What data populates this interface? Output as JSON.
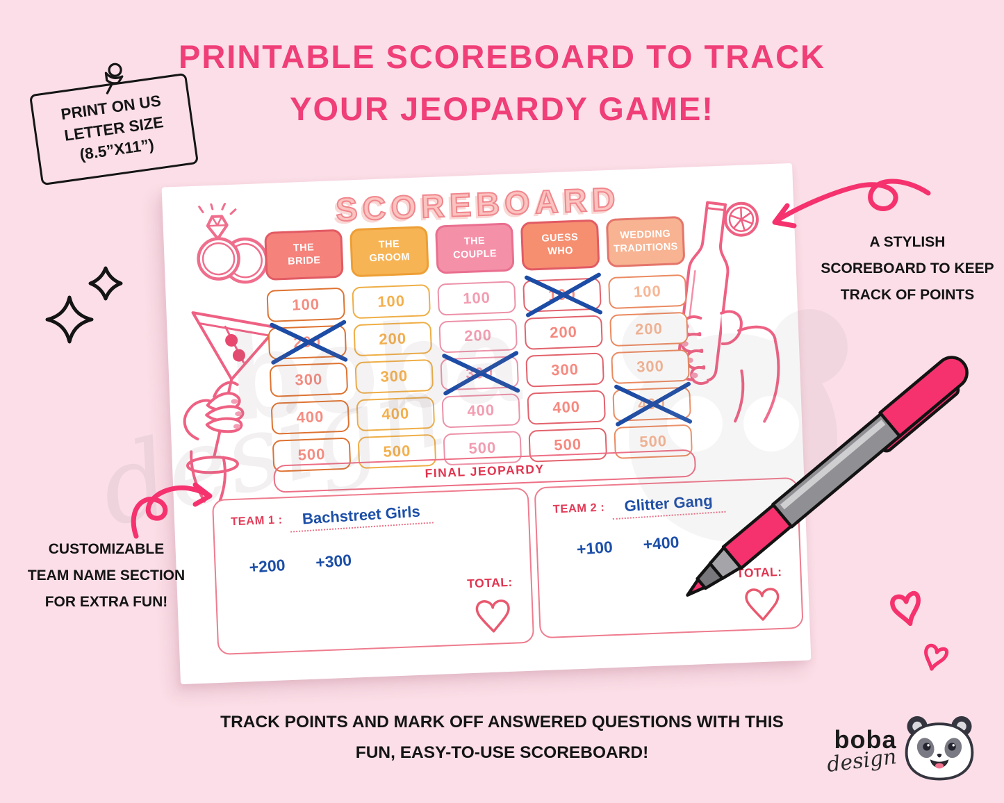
{
  "page": {
    "title_line1": "PRINTABLE SCOREBOARD TO TRACK",
    "title_line2": "YOUR JEOPARDY GAME!",
    "title_color": "#EF3E78",
    "background_color": "#FBDEE7"
  },
  "sticky_note": {
    "line1": "PRINT ON US",
    "line2": "LETTER SIZE",
    "line3": "(8.5”X11”)"
  },
  "right_note": {
    "line1": "A STYLISH",
    "line2": "SCOREBOARD TO KEEP",
    "line3": "TRACK OF POINTS"
  },
  "left_note": {
    "line1": "CUSTOMIZABLE",
    "line2": "TEAM NAME SECTION",
    "line3": "FOR EXTRA FUN!"
  },
  "bottom_note": {
    "line1": "TRACK POINTS AND MARK OFF ANSWERED QUESTIONS WITH THIS",
    "line2": "FUN, EASY-TO-USE SCOREBOARD!"
  },
  "logo": {
    "name": "boba",
    "sub": "design"
  },
  "scoreboard": {
    "title": "SCOREBOARD",
    "final_label": "FINAL JEOPARDY",
    "cross_color": "#1C4CA5",
    "categories": [
      {
        "label": "THE\nBRIDE",
        "header_bg": "#F5827B",
        "header_border": "#E25B64",
        "cell_border": "#DE7331",
        "value_color": "#F48D82",
        "values": [
          100,
          200,
          300,
          400,
          500
        ],
        "crossed": [
          200
        ]
      },
      {
        "label": "THE\nGROOM",
        "header_bg": "#F7B455",
        "header_border": "#ED9F35",
        "cell_border": "#EFAE45",
        "value_color": "#F4B04D",
        "values": [
          100,
          200,
          300,
          400,
          500
        ],
        "crossed": []
      },
      {
        "label": "THE\nCOUPLE",
        "header_bg": "#F590A9",
        "header_border": "#E96F8F",
        "cell_border": "#EC92A8",
        "value_color": "#F29DB1",
        "values": [
          100,
          200,
          300,
          400,
          500
        ],
        "crossed": [
          300
        ]
      },
      {
        "label": "GUESS\nWHO",
        "header_bg": "#F58F70",
        "header_border": "#E25B64",
        "cell_border": "#E2626C",
        "value_color": "#F58A80",
        "values": [
          100,
          200,
          300,
          400,
          500
        ],
        "crossed": [
          100
        ]
      },
      {
        "label": "WEDDING\nTRADITIONS",
        "header_bg": "#F7B392",
        "header_border": "#E4756B",
        "cell_border": "#EA8A60",
        "value_color": "#F6B695",
        "values": [
          100,
          200,
          300,
          400,
          500
        ],
        "crossed": [
          400
        ]
      }
    ],
    "teams": [
      {
        "label": "TEAM 1 :",
        "name": "Bachstreet Girls",
        "scores": [
          "+200",
          "+300"
        ],
        "total_label": "TOTAL:"
      },
      {
        "label": "TEAM 2 :",
        "name": "Glitter Gang",
        "scores": [
          "+100",
          "+400"
        ],
        "total_label": "TOTAL:"
      }
    ]
  }
}
